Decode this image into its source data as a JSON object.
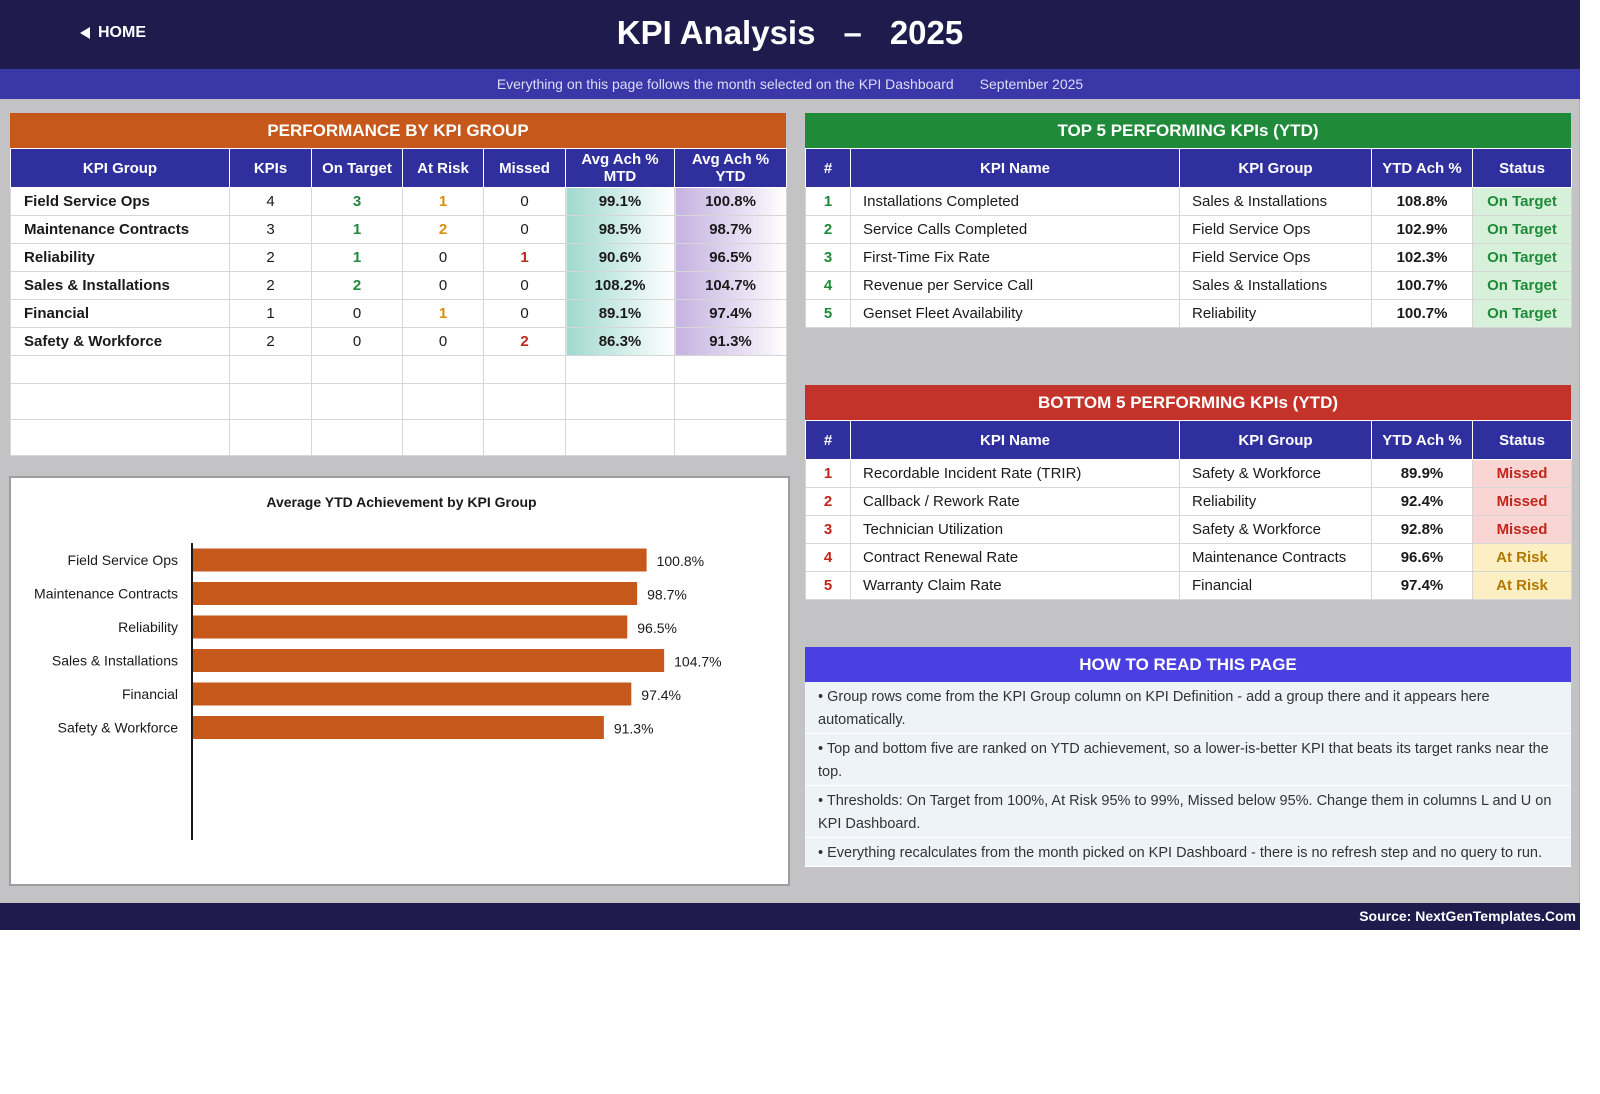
{
  "header": {
    "home_label": "HOME",
    "title_main": "KPI Analysis",
    "title_dash": "–",
    "title_year": "2025",
    "subtitle": "Everything on this page follows the month selected on the KPI Dashboard",
    "selected_month": "September 2025"
  },
  "performance": {
    "title": "PERFORMANCE BY KPI GROUP",
    "columns": [
      "KPI Group",
      "KPIs",
      "On Target",
      "At Risk",
      "Missed",
      "Avg Ach % MTD",
      "Avg Ach % YTD"
    ],
    "rows": [
      {
        "group": "Field Service Ops",
        "kpis": "4",
        "on_target": "3",
        "at_risk": "1",
        "missed": "0",
        "mtd": "99.1%",
        "ytd": "100.8%"
      },
      {
        "group": "Maintenance Contracts",
        "kpis": "3",
        "on_target": "1",
        "at_risk": "2",
        "missed": "0",
        "mtd": "98.5%",
        "ytd": "98.7%"
      },
      {
        "group": "Reliability",
        "kpis": "2",
        "on_target": "1",
        "at_risk": "0",
        "missed": "1",
        "mtd": "90.6%",
        "ytd": "96.5%"
      },
      {
        "group": "Sales & Installations",
        "kpis": "2",
        "on_target": "2",
        "at_risk": "0",
        "missed": "0",
        "mtd": "108.2%",
        "ytd": "104.7%"
      },
      {
        "group": "Financial",
        "kpis": "1",
        "on_target": "0",
        "at_risk": "1",
        "missed": "0",
        "mtd": "89.1%",
        "ytd": "97.4%"
      },
      {
        "group": "Safety & Workforce",
        "kpis": "2",
        "on_target": "0",
        "at_risk": "0",
        "missed": "2",
        "mtd": "86.3%",
        "ytd": "91.3%"
      }
    ]
  },
  "chart_data": {
    "type": "bar",
    "orientation": "horizontal",
    "title": "Average YTD Achievement by KPI Group",
    "categories": [
      "Field Service Ops",
      "Maintenance Contracts",
      "Reliability",
      "Sales & Installations",
      "Financial",
      "Safety & Workforce"
    ],
    "values": [
      100.8,
      98.7,
      96.5,
      104.7,
      97.4,
      91.3
    ],
    "value_labels": [
      "100.8%",
      "98.7%",
      "96.5%",
      "104.7%",
      "97.4%",
      "91.3%"
    ],
    "xlim": [
      0,
      130
    ],
    "bar_color": "#c5581a",
    "grid": false,
    "legend": "none"
  },
  "top5": {
    "title": "TOP 5 PERFORMING KPIs  (YTD)",
    "columns": [
      "#",
      "KPI Name",
      "KPI Group",
      "YTD Ach %",
      "Status"
    ],
    "rows": [
      {
        "rank": "1",
        "name": "Installations Completed",
        "group": "Sales & Installations",
        "ytd": "108.8%",
        "status": "On Target"
      },
      {
        "rank": "2",
        "name": "Service Calls Completed",
        "group": "Field Service Ops",
        "ytd": "102.9%",
        "status": "On Target"
      },
      {
        "rank": "3",
        "name": "First-Time Fix Rate",
        "group": "Field Service Ops",
        "ytd": "102.3%",
        "status": "On Target"
      },
      {
        "rank": "4",
        "name": "Revenue per Service Call",
        "group": "Sales & Installations",
        "ytd": "100.7%",
        "status": "On Target"
      },
      {
        "rank": "5",
        "name": "Genset Fleet Availability",
        "group": "Reliability",
        "ytd": "100.7%",
        "status": "On Target"
      }
    ]
  },
  "bottom5": {
    "title": "BOTTOM 5 PERFORMING KPIs  (YTD)",
    "columns": [
      "#",
      "KPI Name",
      "KPI Group",
      "YTD Ach %",
      "Status"
    ],
    "rows": [
      {
        "rank": "1",
        "name": "Recordable Incident Rate (TRIR)",
        "group": "Safety & Workforce",
        "ytd": "89.9%",
        "status": "Missed"
      },
      {
        "rank": "2",
        "name": "Callback / Rework Rate",
        "group": "Reliability",
        "ytd": "92.4%",
        "status": "Missed"
      },
      {
        "rank": "3",
        "name": "Technician Utilization",
        "group": "Safety & Workforce",
        "ytd": "92.8%",
        "status": "Missed"
      },
      {
        "rank": "4",
        "name": "Contract Renewal Rate",
        "group": "Maintenance Contracts",
        "ytd": "96.6%",
        "status": "At Risk"
      },
      {
        "rank": "5",
        "name": "Warranty Claim Rate",
        "group": "Financial",
        "ytd": "97.4%",
        "status": "At Risk"
      }
    ]
  },
  "howto": {
    "title": "HOW TO READ THIS PAGE",
    "items": [
      "•  Group rows come from the KPI Group column on KPI Definition - add a group there and it appears here automatically.",
      "•  Top and bottom five are ranked on YTD achievement, so a lower-is-better KPI that beats its target ranks near the top.",
      "•  Thresholds: On Target from 100%, At Risk 95% to 99%, Missed below 95%. Change them in columns L and U on KPI Dashboard.",
      "•  Everything recalculates from the month picked on KPI Dashboard - there is no refresh step and no query to run."
    ]
  },
  "footer": {
    "source": "Source: NextGenTemplates.Com"
  }
}
